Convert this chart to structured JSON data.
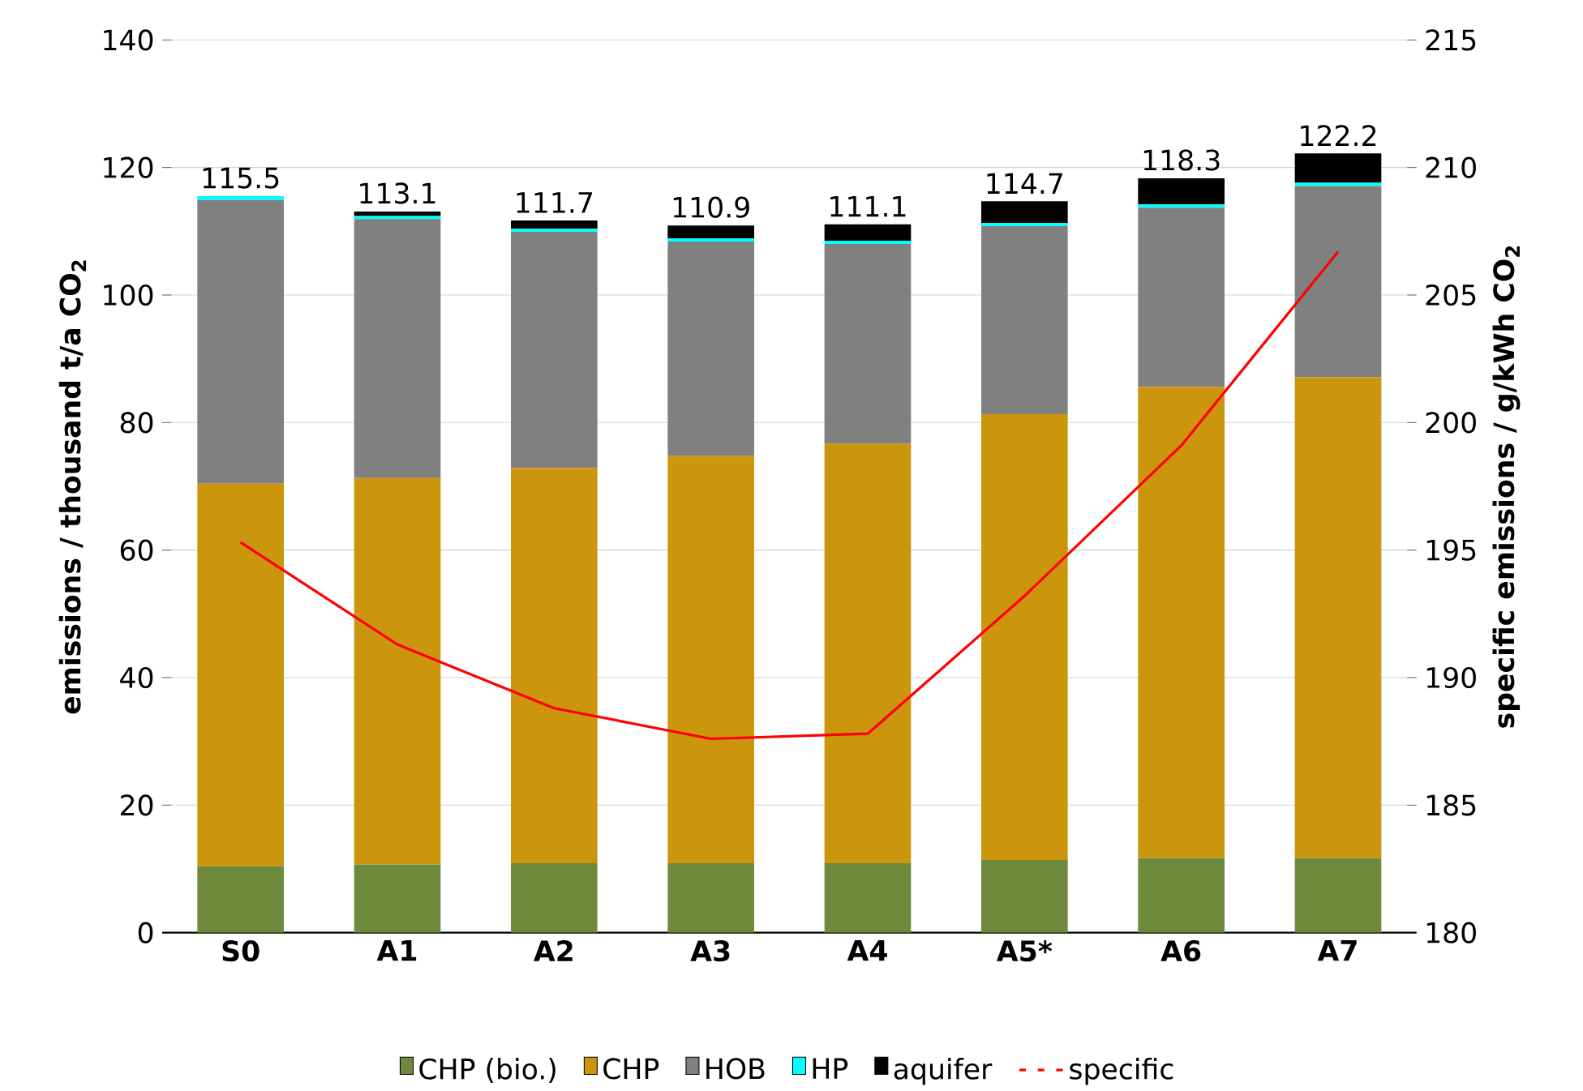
{
  "chart_data": {
    "type": "bar",
    "stacked": true,
    "ylabel": "**emissions / thousand t/a CO$_{2}$**",
    "y2label": "**specific emissions / g/kWh CO$_{2}$**",
    "categories": [
      "S0",
      "A1",
      "A2",
      "A3",
      "A4",
      "A5*",
      "A6",
      "A7"
    ],
    "series": [
      {
        "name": "CHP (bio.)",
        "color": "#6e8b3d",
        "values": [
          10.4,
          10.7,
          10.9,
          10.9,
          10.9,
          11.4,
          11.7,
          11.7
        ]
      },
      {
        "name": "CHP",
        "color": "#cc950e",
        "values": [
          60.0,
          60.6,
          62.0,
          63.9,
          65.8,
          69.9,
          73.9,
          75.4
        ]
      },
      {
        "name": "HOB",
        "color": "#808080",
        "values": [
          44.5,
          40.6,
          37.0,
          33.6,
          31.3,
          29.5,
          28.1,
          30.0
        ]
      },
      {
        "name": "HP",
        "color": "#00ffff",
        "values": [
          0.6,
          0.5,
          0.5,
          0.5,
          0.5,
          0.5,
          0.5,
          0.5
        ]
      },
      {
        "name": "aquifer",
        "color": "#000000",
        "values": [
          0,
          0.7,
          1.3,
          2.0,
          2.6,
          3.4,
          4.1,
          4.6
        ]
      },
      {
        "name": "specific",
        "type": "line",
        "axis": "y2",
        "color": "#ff0000",
        "values": [
          195.3,
          191.3,
          188.8,
          187.6,
          187.8,
          193.2,
          199.1,
          206.7
        ]
      }
    ],
    "totals": [
      "115.5",
      "113.1",
      "111.7",
      "110.9",
      "111.1",
      "114.7",
      "118.3",
      "122.2"
    ],
    "ylim": [
      0,
      140
    ],
    "yticks": [
      0,
      20,
      40,
      60,
      80,
      100,
      120,
      140
    ],
    "y2lim": [
      180,
      215
    ],
    "y2ticks": [
      180,
      185,
      190,
      195,
      200,
      205,
      210,
      215
    ],
    "grid": "y",
    "legend": "bottom",
    "marker": "none"
  }
}
